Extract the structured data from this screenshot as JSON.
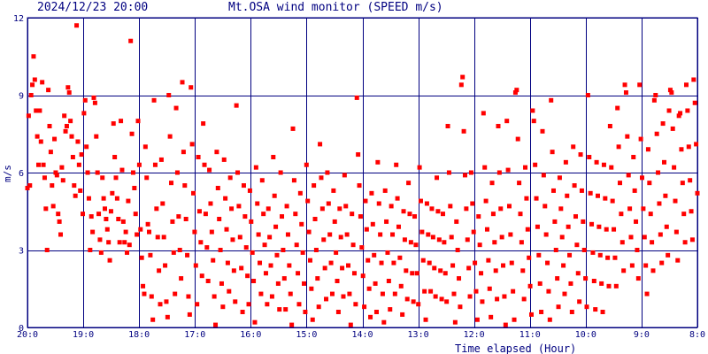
{
  "header": {
    "timestamp": "2024/12/23 20:00",
    "title": "Mt.OSA wind monitor (SPEED m/s)"
  },
  "colors": {
    "grid": "#000080",
    "points": "#ff0000",
    "text": "#000080"
  },
  "chart_data": {
    "type": "scatter",
    "title": "Mt.OSA wind monitor (SPEED m/s)",
    "xlabel": "Time elapsed (Hour)",
    "ylabel": "m/s",
    "ylim": [
      0,
      12
    ],
    "xlim": [
      20,
      8
    ],
    "grid": true,
    "y_ticks": [
      0,
      3,
      6,
      9,
      12
    ],
    "y_tick_labels": [
      "0",
      "3",
      "6",
      "9",
      "12"
    ],
    "x_ticks": [
      20,
      19,
      18,
      17,
      16,
      15,
      14,
      13,
      12,
      11,
      10,
      9,
      8
    ],
    "x_tick_labels": [
      "20:0",
      "19:0",
      "18:0",
      "17:0",
      "16:0",
      "15:0",
      "14:0",
      "13:0",
      "12:0",
      "11:0",
      "10:0",
      "9:0",
      "8:0"
    ],
    "series": [
      {
        "y": [
          5.4,
          8.2,
          5.5,
          9.0,
          9.4,
          10.5,
          9.6,
          8.4,
          7.4,
          6.3,
          8.4,
          7.2,
          9.5,
          6.3,
          5.8,
          4.6,
          3.0,
          9.2,
          7.8,
          6.8,
          5.5,
          4.7,
          7.3,
          6.0,
          5.9,
          4.4,
          4.1,
          3.6,
          6.2,
          5.7,
          8.2,
          7.6,
          7.8,
          9.3,
          9.1,
          8.0,
          7.4,
          6.6,
          5.5,
          5.1,
          11.7,
          7.2,
          6.3,
          5.3,
          6.7,
          4.4,
          8.3,
          8.8,
          7.0,
          6.0,
          5.0,
          3.0,
          4.3,
          3.7,
          8.9,
          8.7,
          7.4,
          6.0,
          4.4,
          3.4,
          2.9,
          5.8,
          5.0,
          4.6,
          4.2,
          3.8,
          3.3,
          2.6,
          4.5,
          5.2,
          7.9,
          6.6,
          5.8,
          5.0,
          4.2,
          3.3,
          8.0,
          6.1,
          4.1,
          3.3,
          3.7,
          2.9,
          4.9,
          3.2,
          11.1,
          7.5,
          6.0,
          5.4,
          4.4,
          3.6,
          8.0,
          6.3,
          3.8,
          2.7,
          1.6,
          1.3,
          7.0,
          5.8,
          4.0,
          3.7,
          2.8,
          1.2,
          0.3,
          8.8,
          6.3,
          4.6,
          3.5,
          2.2,
          0.9,
          6.5,
          4.8,
          3.5,
          2.4,
          1.0,
          0.4,
          9.0,
          7.4,
          5.6,
          4.1,
          2.9,
          1.3,
          8.5,
          6.0,
          4.3,
          3.0,
          1.9,
          9.5,
          6.8,
          5.5,
          4.2,
          2.8,
          1.2,
          0.5,
          9.3,
          7.1,
          5.2,
          3.7,
          2.4,
          0.9,
          6.6,
          4.5,
          3.3,
          2.0,
          7.9,
          6.3,
          4.4,
          3.1,
          1.8,
          6.1,
          4.8,
          3.7,
          2.6,
          1.2,
          0.1,
          6.8,
          5.4,
          4.2,
          3.0,
          1.7,
          0.8,
          6.5,
          5.0,
          3.8,
          2.5,
          1.4,
          5.8,
          4.6,
          3.4,
          2.2,
          1.0,
          8.6,
          6.0,
          4.7,
          3.5,
          2.3,
          0.6,
          5.5,
          4.3,
          3.1,
          2.0,
          0.9,
          5.3,
          4.1,
          2.9,
          1.8,
          0.2,
          6.2,
          4.8,
          3.6,
          2.5,
          1.3,
          5.7,
          4.4,
          3.2,
          2.1,
          0.9,
          4.6,
          3.5,
          2.4,
          1.2,
          6.6,
          5.1,
          3.9,
          2.8,
          1.7,
          0.7,
          6.0,
          4.3,
          3.0,
          1.9,
          0.7,
          4.7,
          3.6,
          2.4,
          1.3,
          0.1,
          7.7,
          5.7,
          4.4,
          3.2,
          2.1,
          0.9,
          5.2,
          4.0,
          2.9,
          1.7,
          0.6,
          6.3,
          4.9,
          3.7,
          2.6,
          1.5,
          0.3,
          5.5,
          4.2,
          3.0,
          1.9,
          0.8,
          7.1,
          5.8,
          4.6,
          3.4,
          2.3,
          1.1,
          6.0,
          4.8,
          3.6,
          2.5,
          1.3,
          5.3,
          4.1,
          2.9,
          1.8,
          0.6,
          4.6,
          3.5,
          2.3,
          1.2,
          5.9,
          4.7,
          3.6,
          2.4,
          1.3,
          0.1,
          4.4,
          3.2,
          2.1,
          0.9,
          8.9,
          6.7,
          5.5,
          4.3,
          3.1,
          2.0,
          0.8,
          4.9,
          3.8,
          2.6,
          1.5,
          0.4,
          5.2,
          4.0,
          2.8,
          1.7,
          0.6,
          6.4,
          4.8,
          3.6,
          2.5,
          1.3,
          0.2,
          5.3,
          4.1,
          2.9,
          1.8,
          0.7,
          4.7,
          3.6,
          2.5,
          1.3,
          6.3,
          5.0,
          3.9,
          2.7,
          1.6,
          0.5,
          4.5,
          3.4,
          2.2,
          1.1,
          5.6,
          4.4,
          3.3,
          2.1,
          1.0,
          4.3,
          3.2,
          2.1,
          0.9,
          6.2,
          4.9,
          3.7,
          2.6,
          1.4,
          0.3,
          4.8,
          3.6,
          2.5,
          1.4,
          4.6,
          3.5,
          2.3,
          1.2,
          5.8,
          4.5,
          3.4,
          2.2,
          1.1,
          4.4,
          3.3,
          2.1,
          1.0,
          7.8,
          6.0,
          4.7,
          3.5,
          2.4,
          1.3,
          0.2,
          4.1,
          3.0,
          1.9,
          0.8,
          9.4,
          9.7,
          7.6,
          5.9,
          4.6,
          3.4,
          2.3,
          1.2,
          6.0,
          4.8,
          3.7,
          2.5,
          1.4,
          0.3,
          4.3,
          3.2,
          2.1,
          1.0,
          8.3,
          6.2,
          4.9,
          3.8,
          2.6,
          1.5,
          0.4,
          5.6,
          4.4,
          3.3,
          2.2,
          1.1,
          7.8,
          6.0,
          4.6,
          3.5,
          2.4,
          1.2,
          0.1,
          8.0,
          6.1,
          4.7,
          3.6,
          2.5,
          1.4,
          0.3,
          9.1,
          9.2,
          7.3,
          5.6,
          4.4,
          3.3,
          2.2,
          1.1,
          6.2,
          5.0,
          3.8,
          2.7,
          1.6,
          0.5,
          8.4,
          8.0,
          6.3,
          5.0,
          3.9,
          2.8,
          1.7,
          0.6,
          7.6,
          5.9,
          4.7,
          3.6,
          2.5,
          1.4,
          0.3,
          8.8,
          6.8,
          5.3,
          4.1,
          3.0,
          1.9,
          0.8,
          5.8,
          4.6,
          3.5,
          2.4,
          1.3,
          6.4,
          5.1,
          3.9,
          2.8,
          1.7,
          0.6,
          7.0,
          5.5,
          4.3,
          3.2,
          2.1,
          1.0,
          6.7,
          5.3,
          4.1,
          3.0,
          1.9,
          0.8,
          9.0,
          6.6,
          5.2,
          4.0,
          2.9,
          1.8,
          0.7,
          6.4,
          5.1,
          3.9,
          2.8,
          1.7,
          0.6,
          6.3,
          5.0,
          3.8,
          2.7,
          1.6,
          7.8,
          6.2,
          4.9,
          3.8,
          2.7,
          1.6,
          8.5,
          7.0,
          5.6,
          4.4,
          3.3,
          2.2,
          9.4,
          9.1,
          7.4,
          5.9,
          4.6,
          3.5,
          2.4,
          6.6,
          5.3,
          4.1,
          3.0,
          1.9,
          9.4,
          7.3,
          5.8,
          4.6,
          3.5,
          2.4,
          1.3,
          6.9,
          5.6,
          4.4,
          3.3,
          2.2,
          8.8,
          9.0,
          7.5,
          6.0,
          4.8,
          3.6,
          2.5,
          7.9,
          6.4,
          5.1,
          3.9,
          2.8,
          8.4,
          9.2,
          9.1,
          7.7,
          6.2,
          4.9,
          3.7,
          2.6,
          8.2,
          8.3,
          6.9,
          5.6,
          4.4,
          3.3,
          9.4,
          8.4,
          7.0,
          5.7,
          4.5,
          3.4,
          9.6,
          8.7,
          7.1,
          5.2
        ]
      }
    ]
  }
}
